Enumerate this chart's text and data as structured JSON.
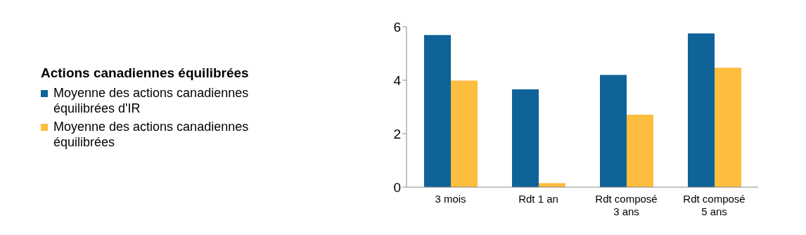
{
  "chart_data": {
    "type": "bar",
    "legend_title": "Actions canadiennes équilibrées",
    "categories": [
      "3 mois",
      "Rdt 1 an",
      "Rdt composé 3 ans",
      "Rdt composé 5 ans"
    ],
    "series": [
      {
        "name": "Moyenne des actions canadiennes équilibrées d'IR",
        "color": "#0f6399",
        "values": [
          5.69,
          3.66,
          4.2,
          5.75
        ]
      },
      {
        "name": "Moyenne des actions canadiennes équilibrées",
        "color": "#fdbd3e",
        "values": [
          3.99,
          0.15,
          2.71,
          4.47
        ]
      }
    ],
    "ylim": [
      0,
      6
    ],
    "yticks": [
      0,
      2,
      4,
      6
    ],
    "grid": false,
    "legend": "left"
  }
}
